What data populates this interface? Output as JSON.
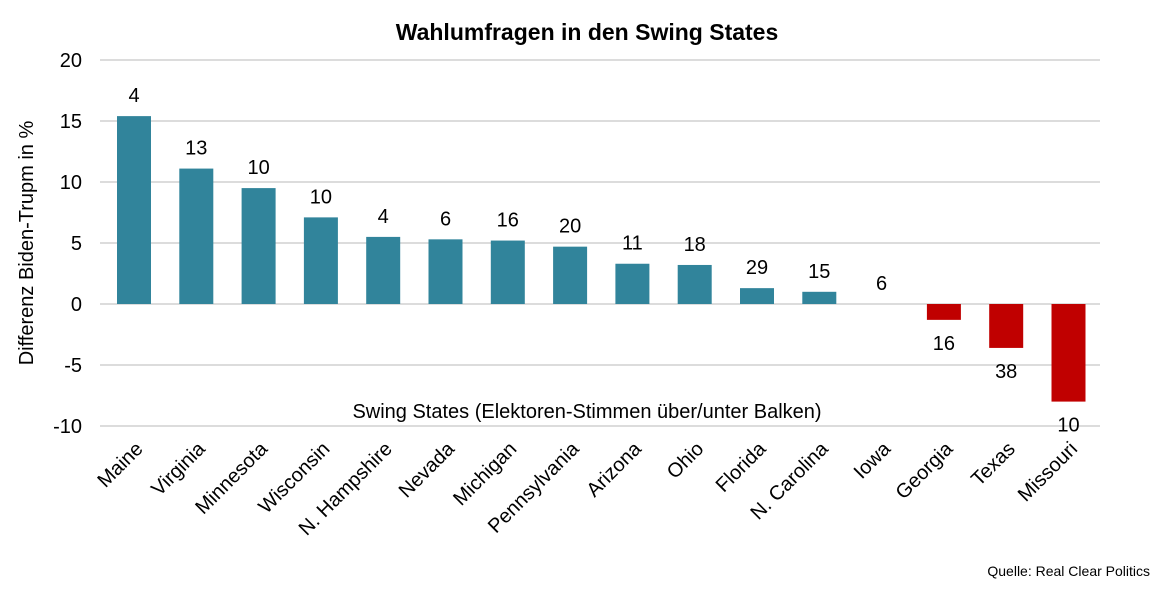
{
  "chart_data": {
    "type": "bar",
    "title": "Wahlumfragen in den Swing States",
    "xlabel": "Swing States (Elektoren-Stimmen über/unter Balken)",
    "ylabel": "Differenz Biden-Trupm in %",
    "ylim": [
      -10,
      20
    ],
    "yticks": [
      20,
      15,
      10,
      5,
      0,
      -5,
      -10
    ],
    "grid": true,
    "categories": [
      "Maine",
      "Virginia",
      "Minnesota",
      "Wisconsin",
      "N. Hampshire",
      "Nevada",
      "Michigan",
      "Pennsylvania",
      "Arizona",
      "Ohio",
      "Florida",
      "N. Carolina",
      "Iowa",
      "Georgia",
      "Texas",
      "Missouri"
    ],
    "values": [
      15.4,
      11.1,
      9.5,
      7.1,
      5.5,
      5.3,
      5.2,
      4.7,
      3.3,
      3.2,
      1.3,
      1.0,
      0,
      -1.3,
      -3.6,
      -8.0
    ],
    "data_labels": [
      "4",
      "13",
      "10",
      "10",
      "4",
      "6",
      "16",
      "20",
      "11",
      "18",
      "29",
      "15",
      "6",
      "16",
      "38",
      "10"
    ],
    "colors": {
      "positive": "#31849B",
      "negative": "#C00000"
    },
    "source": "Quelle: Real Clear Politics"
  }
}
